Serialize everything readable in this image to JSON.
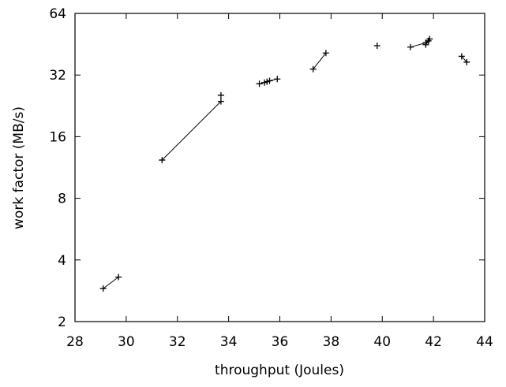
{
  "chart_data": {
    "type": "line",
    "xlabel": "throughput (Joules)",
    "ylabel": "work factor (MB/s)",
    "xlim": [
      28,
      44
    ],
    "ylim": [
      2,
      64
    ],
    "yscale": "log2",
    "grid": false,
    "legend": "none",
    "x_ticks": [
      28,
      30,
      32,
      34,
      36,
      38,
      40,
      42,
      44
    ],
    "y_ticks": [
      2,
      4,
      8,
      16,
      32,
      64
    ],
    "x_tick_labels": [
      "28",
      "30",
      "32",
      "34",
      "36",
      "38",
      "40",
      "42",
      "44"
    ],
    "y_tick_labels": [
      "2",
      "4",
      "8",
      "16",
      "32",
      "64"
    ],
    "series": [
      {
        "points": [
          [
            29.1,
            2.9
          ],
          [
            29.7,
            3.3
          ]
        ]
      },
      {
        "points": [
          [
            31.4,
            12.3
          ],
          [
            33.7,
            23.8
          ]
        ]
      },
      {
        "points": [
          [
            33.7,
            25.5
          ]
        ]
      },
      {
        "points": [
          [
            35.2,
            29.0
          ],
          [
            35.4,
            29.4
          ],
          [
            35.5,
            29.7
          ],
          [
            35.6,
            30.0
          ],
          [
            35.9,
            30.6
          ]
        ]
      },
      {
        "points": [
          [
            37.3,
            34.2
          ],
          [
            37.8,
            41.0
          ]
        ]
      },
      {
        "points": [
          [
            39.8,
            44.5
          ]
        ]
      },
      {
        "points": [
          [
            41.1,
            43.8
          ],
          [
            41.7,
            46.0
          ],
          [
            41.85,
            48.0
          ]
        ]
      },
      {
        "points": [
          [
            41.7,
            45.0
          ],
          [
            41.8,
            47.0
          ]
        ]
      },
      {
        "points": [
          [
            43.1,
            39.5
          ],
          [
            43.3,
            37.0
          ]
        ]
      }
    ]
  }
}
